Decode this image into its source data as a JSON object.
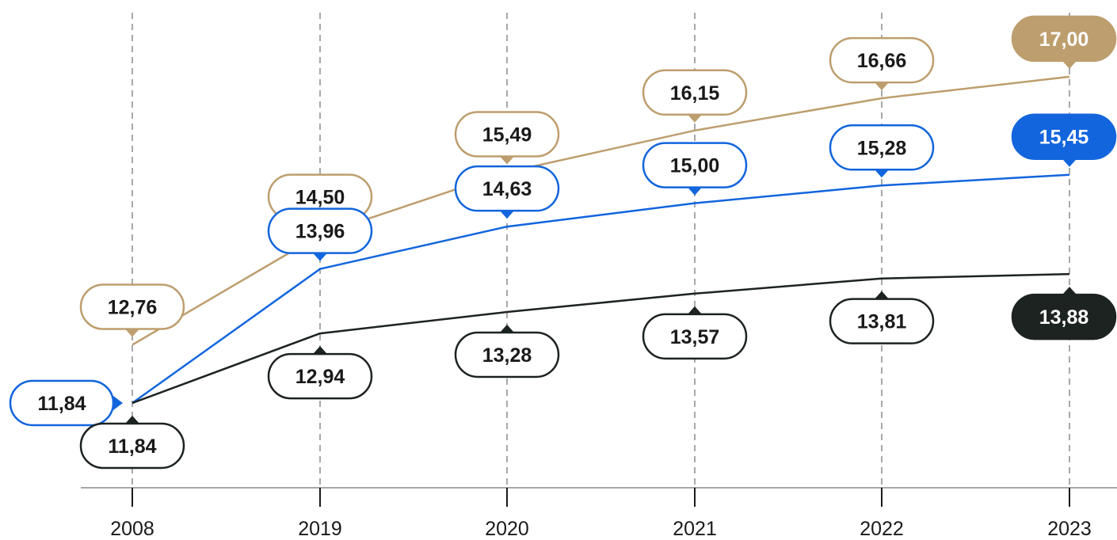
{
  "chart_data": {
    "type": "line",
    "categories": [
      "2008",
      "2019",
      "2020",
      "2021",
      "2022",
      "2023"
    ],
    "series": [
      {
        "values": [
          12.76,
          14.5,
          15.49,
          16.15,
          16.66,
          17.0
        ],
        "labels": [
          "12,76",
          "14,50",
          "15,49",
          "16,15",
          "16,66",
          "17,00"
        ],
        "color": "#bd9e6e",
        "label_position": "above"
      },
      {
        "values": [
          11.84,
          13.96,
          14.63,
          15.0,
          15.28,
          15.45
        ],
        "labels": [
          "11,84",
          "13,96",
          "14,63",
          "15,00",
          "15,28",
          "15,45"
        ],
        "color": "#1265dd",
        "label_position": "above",
        "first_label_position": "left"
      },
      {
        "values": [
          11.84,
          12.94,
          13.28,
          13.57,
          13.81,
          13.88
        ],
        "labels": [
          "11,84",
          "12,94",
          "13,28",
          "13,57",
          "13,81",
          "13,88"
        ],
        "color": "#1d2320",
        "label_position": "below"
      }
    ],
    "last_label_filled": true,
    "gridlines": "dashed-vertical",
    "ylim": [
      10.6,
      17.5
    ]
  }
}
